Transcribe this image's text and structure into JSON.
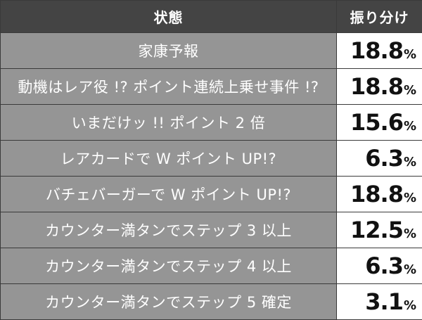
{
  "header": {
    "state_label": "状態",
    "rate_label": "振り分け"
  },
  "rows": [
    {
      "state": "家康予報",
      "value": "18.8",
      "unit": "%"
    },
    {
      "state": "動機はレア役 !? ポイント連続上乗せ事件 !?",
      "value": "18.8",
      "unit": "%"
    },
    {
      "state": "いまだけッ !! ポイント 2 倍",
      "value": "15.6",
      "unit": "%"
    },
    {
      "state": "レアカードで W ポイント UP!?",
      "value": "6.3",
      "unit": "%"
    },
    {
      "state": "バチェバーガーで W ポイント UP!?",
      "value": "18.8",
      "unit": "%"
    },
    {
      "state": "カウンター満タンでステップ 3 以上",
      "value": "12.5",
      "unit": "%"
    },
    {
      "state": "カウンター満タンでステップ 4 以上",
      "value": "6.3",
      "unit": "%"
    },
    {
      "state": "カウンター満タンでステップ 5 確定",
      "value": "3.1",
      "unit": "%"
    }
  ]
}
